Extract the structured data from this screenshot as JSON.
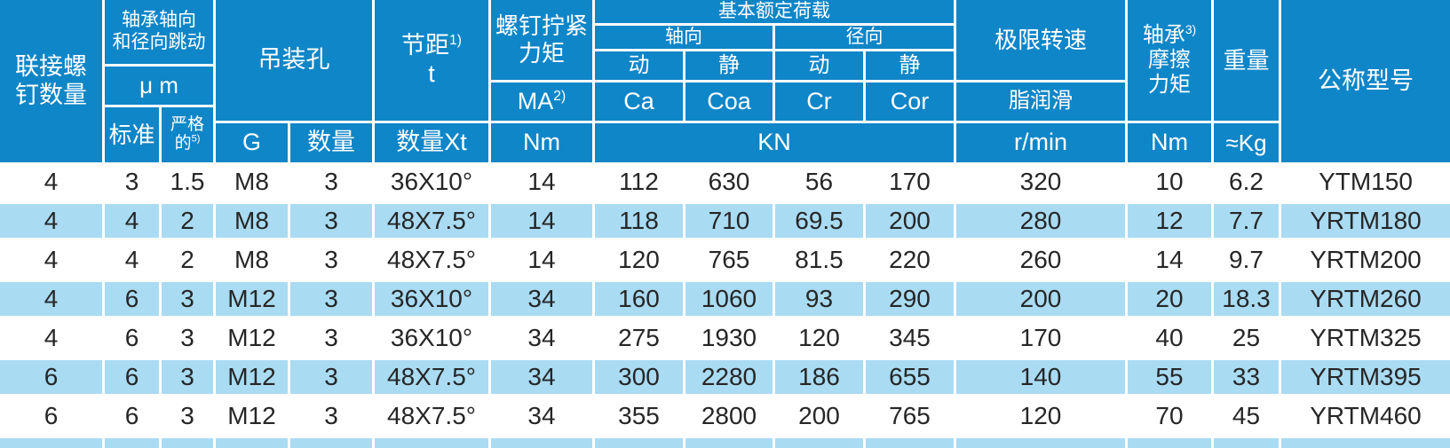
{
  "colors": {
    "header_bg": "#0f86c8",
    "row_alt_bg": "#a9dbf3",
    "grid_line": "#ffffff",
    "body_text": "#262626"
  },
  "h": {
    "connect": "联接螺\n钉数量",
    "runout": {
      "title": "轴承轴向\n和径向跳动",
      "unit": "μ m",
      "std": "标准",
      "strict_l1": "严格",
      "strict_l2": "的",
      "strict_sup": "5)"
    },
    "hoist": {
      "title": "吊装孔",
      "g": "G",
      "qty": "数量"
    },
    "pitch": {
      "label": "节距",
      "sup": "1)",
      "sub": "t",
      "bottom": "数量Xt"
    },
    "torque": {
      "title": "螺钉拧紧\n力矩",
      "ma": "MA",
      "ma_sup": "2)",
      "unit": "Nm"
    },
    "load": {
      "title": "基本额定荷载",
      "axial": "轴向",
      "radial": "径向",
      "dyn": "动",
      "stat": "静",
      "ca": "Ca",
      "coa": "Coa",
      "cr": "Cr",
      "cor": "Cor",
      "unit": "KN"
    },
    "speed": {
      "title": "极限转速",
      "grease": "脂润滑",
      "unit": "r/min"
    },
    "friction": {
      "l1": "轴承",
      "sup": "3)",
      "l2": "摩擦",
      "l3": "力矩",
      "unit": "Nm"
    },
    "weight": {
      "title": "重量",
      "unit": "≈Kg"
    },
    "model": {
      "title": "公称型号"
    }
  },
  "rows": [
    [
      "4",
      "3",
      "1.5",
      "M8",
      "3",
      "36X10°",
      "14",
      "112",
      "630",
      "56",
      "170",
      "320",
      "10",
      "6.2",
      "YTM150"
    ],
    [
      "4",
      "4",
      "2",
      "M8",
      "3",
      "48X7.5°",
      "14",
      "118",
      "710",
      "69.5",
      "200",
      "280",
      "12",
      "7.7",
      "YRTM180"
    ],
    [
      "4",
      "4",
      "2",
      "M8",
      "3",
      "48X7.5°",
      "14",
      "120",
      "765",
      "81.5",
      "220",
      "260",
      "14",
      "9.7",
      "YRTM200"
    ],
    [
      "4",
      "6",
      "3",
      "M12",
      "3",
      "36X10°",
      "34",
      "160",
      "1060",
      "93",
      "290",
      "200",
      "20",
      "18.3",
      "YRTM260"
    ],
    [
      "4",
      "6",
      "3",
      "M12",
      "3",
      "36X10°",
      "34",
      "275",
      "1930",
      "120",
      "345",
      "170",
      "40",
      "25",
      "YRTM325"
    ],
    [
      "6",
      "6",
      "3",
      "M12",
      "3",
      "48X7.5°",
      "34",
      "300",
      "2280",
      "186",
      "655",
      "140",
      "55",
      "33",
      "YRTM395"
    ],
    [
      "6",
      "6",
      "3",
      "M12",
      "3",
      "48X7.5°",
      "34",
      "355",
      "2800",
      "200",
      "765",
      "120",
      "70",
      "45",
      "YRTM460"
    ]
  ]
}
